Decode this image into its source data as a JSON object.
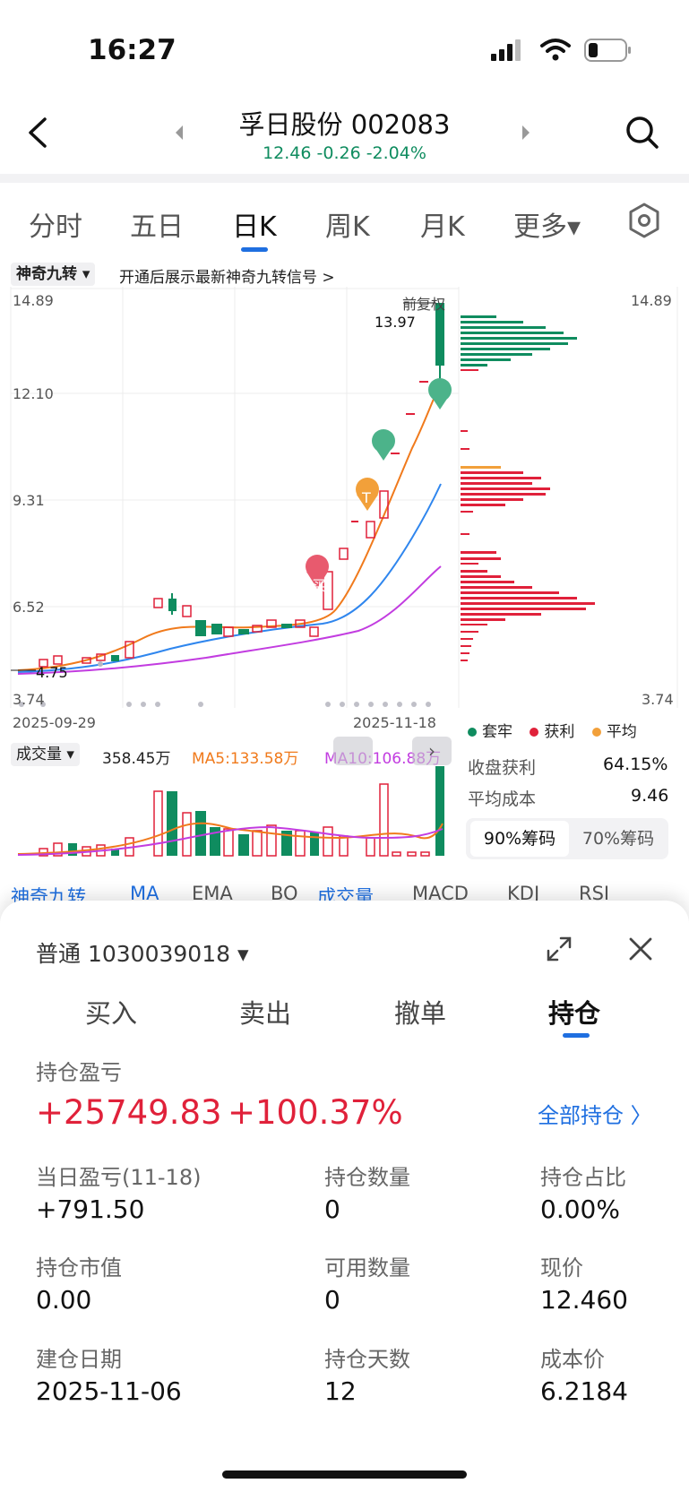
{
  "status_bar": {
    "time": "16:27"
  },
  "header": {
    "title": "孚日股份 002083",
    "quote": "12.46 -0.26 -2.04%",
    "quote_color": "#0f8c5f"
  },
  "period_tabs": [
    "分时",
    "五日",
    "日K",
    "周K",
    "月K",
    "更多▾"
  ],
  "active_period": "日K",
  "signal_bar": {
    "chip": "神奇九转",
    "text": "开通后展示最新神奇九转信号 >"
  },
  "price_chart": {
    "y_top": "14.89",
    "y_mid1": "12.10",
    "y_mid2": "9.31",
    "y_mid3": "6.52",
    "y_bottom": "3.74",
    "right_top": "14.89",
    "right_bottom": "3.74",
    "adjust_label": "前复权",
    "high_label": "13.97",
    "low_label": "4.75",
    "date_start": "2025-09-29",
    "date_end": "2025-11-18",
    "markers": {
      "buy": "买",
      "sell": "卖",
      "t": "T"
    }
  },
  "chip_panel": {
    "legend": [
      "套牢",
      "获利",
      "平均"
    ],
    "legend_colors": [
      "#0f8c5f",
      "#e0213a",
      "#f2a03a"
    ],
    "profit_label": "收盘获利",
    "profit_value": "64.15%",
    "avg_cost_label": "平均成本",
    "avg_cost_value": "9.46",
    "btn_90": "90%筹码",
    "btn_70": "70%筹码"
  },
  "volume_chart": {
    "label": "成交量",
    "current": "358.45万",
    "ma5": "MA5:133.58万",
    "ma10": "MA10:106.88万"
  },
  "indicator_tabs": [
    "神奇九转",
    "MA",
    "EMA",
    "BO",
    "成交量",
    "MACD",
    "KDJ",
    "RSI"
  ],
  "trade": {
    "account": "普通 1030039018 ▾",
    "tabs": [
      "买入",
      "卖出",
      "撤单",
      "持仓"
    ],
    "active_tab": "持仓",
    "pnl_label": "持仓盈亏",
    "pnl_amount": "+25749.83",
    "pnl_percent": "+100.37%",
    "all_positions": "全部持仓 〉",
    "fields": [
      {
        "label": "当日盈亏(11-18)",
        "value": "+791.50",
        "color": "#e0213a"
      },
      {
        "label": "持仓数量",
        "value": "0"
      },
      {
        "label": "持仓占比",
        "value": "0.00%"
      },
      {
        "label": "持仓市值",
        "value": "0.00"
      },
      {
        "label": "可用数量",
        "value": "0"
      },
      {
        "label": "现价",
        "value": "12.460"
      },
      {
        "label": "建仓日期",
        "value": "2025-11-06"
      },
      {
        "label": "持仓天数",
        "value": "12"
      },
      {
        "label": "成本价",
        "value": "6.2184"
      }
    ]
  }
}
